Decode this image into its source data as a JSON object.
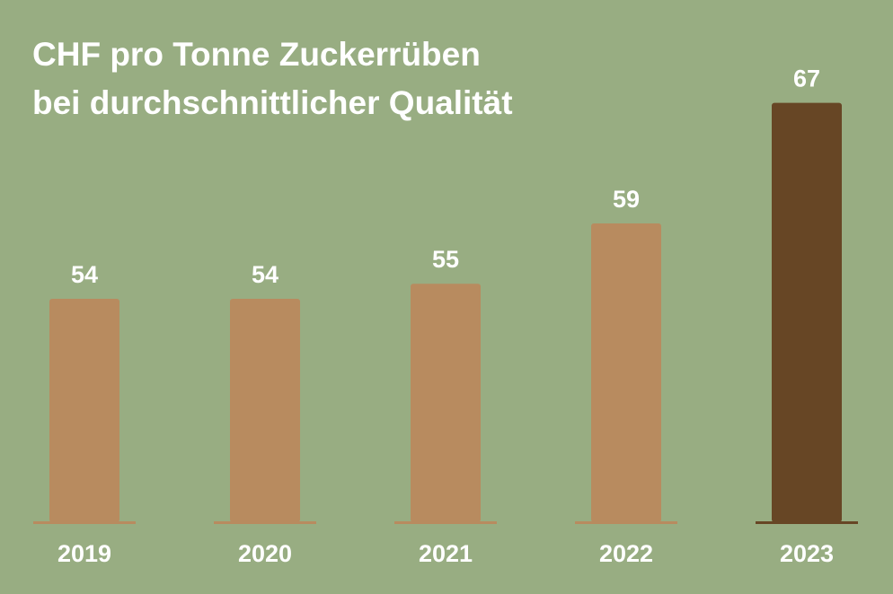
{
  "chart_data": {
    "type": "bar",
    "title_line1": "CHF pro Tonne Zuckerrüben",
    "title_line2": "bei durchschnittlicher Qualität",
    "categories": [
      "2019",
      "2020",
      "2021",
      "2022",
      "2023"
    ],
    "values": [
      54,
      54,
      55,
      59,
      67
    ],
    "value_labels": [
      "54",
      "54",
      "55",
      "59",
      "67"
    ],
    "xlabel": "",
    "ylabel": "",
    "grid": false,
    "legend": "none",
    "colors": {
      "background": "#98ad82",
      "bar": "#b88b5f",
      "highlight_bar": "#674625",
      "text": "#ffffff"
    },
    "highlight_index": 4
  }
}
